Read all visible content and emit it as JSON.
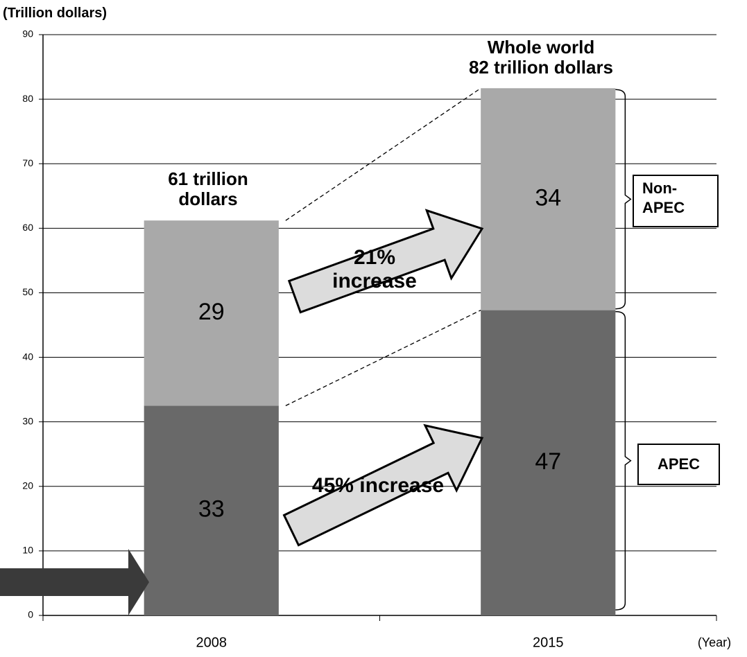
{
  "chart_data": {
    "type": "stacked_bar",
    "y_axis_label": "(Trillion dollars)",
    "x_axis_label": "(Year)",
    "categories": [
      "2008",
      "2015"
    ],
    "series": [
      {
        "name": "APEC",
        "color": "#696969",
        "values": [
          32.5,
          47.3
        ],
        "value_labels": [
          "33",
          "47"
        ]
      },
      {
        "name": "Non-APEC",
        "color": "#a9a9a9",
        "values": [
          28.7,
          34.4
        ],
        "value_labels": [
          "29",
          "34"
        ]
      }
    ],
    "ylim": [
      0,
      90
    ],
    "yticks": [
      0,
      10,
      20,
      30,
      40,
      50,
      60,
      70,
      80,
      90
    ],
    "grid": true,
    "annotations": [
      "61 trillion\ndollars",
      "Whole world\n82 trillion dollars",
      "21%\nincrease",
      "45% increase"
    ]
  }
}
